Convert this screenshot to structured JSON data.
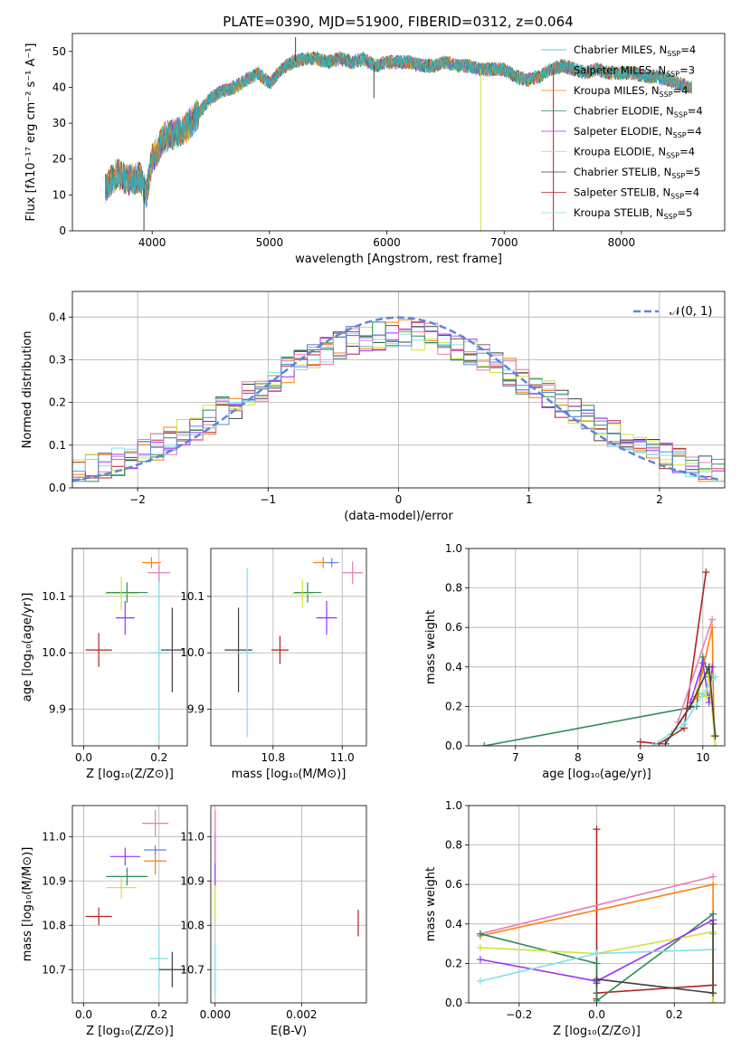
{
  "figure": {
    "title": "PLATE=0390, MJD=51900, FIBERID=0312, z=0.064"
  },
  "colors": {
    "Chabrier MILES": "#17becf",
    "Salpeter MILES": "#7f7f7f",
    "Kroupa MILES": "#ff7f0e",
    "Chabrier ELODIE": "#2e8b57",
    "Salpeter ELODIE": "#9b30ff",
    "Kroupa ELODIE": "#cde33a",
    "Chabrier STELIB": "#404040",
    "Salpeter STELIB": "#b22222",
    "Kroupa STELIB": "#7fdfea",
    "Normal": "#5b87d6",
    "Pink": "#e67eb5",
    "Blue": "#5b87d6"
  },
  "chart_data": [
    {
      "id": "spectrum",
      "type": "line",
      "xlabel": "wavelength [Angstrom, rest frame]",
      "ylabel": "Flux [fλ10⁻¹⁷ erg cm⁻² s⁻¹ A⁻¹]",
      "xlim": [
        3320,
        8880
      ],
      "ylim": [
        0,
        55
      ],
      "xticks": [
        4000,
        5000,
        6000,
        7000,
        8000
      ],
      "yticks": [
        0,
        10,
        20,
        30,
        40,
        50
      ],
      "grid": false,
      "legend_position": "top-right",
      "legend": [
        {
          "name": "Chabrier MILES",
          "nssp": "4"
        },
        {
          "name": "Salpeter MILES",
          "nssp": "3"
        },
        {
          "name": "Kroupa MILES",
          "nssp": "4"
        },
        {
          "name": "Chabrier ELODIE",
          "nssp": "4"
        },
        {
          "name": "Salpeter ELODIE",
          "nssp": "4"
        },
        {
          "name": "Kroupa ELODIE",
          "nssp": "4"
        },
        {
          "name": "Chabrier STELIB",
          "nssp": "5"
        },
        {
          "name": "Salpeter STELIB",
          "nssp": "4"
        },
        {
          "name": "Kroupa STELIB",
          "nssp": "5"
        }
      ],
      "continuum": {
        "x": [
          3600,
          3700,
          3800,
          3900,
          3950,
          4000,
          4100,
          4200,
          4300,
          4400,
          4500,
          4600,
          4700,
          4800,
          4900,
          5000,
          5100,
          5200,
          5300,
          5400,
          5500,
          5600,
          5700,
          5800,
          5900,
          6000,
          6100,
          6200,
          6300,
          6400,
          6500,
          6600,
          6700,
          6800,
          6900,
          7000,
          7100,
          7200,
          7300,
          7400,
          7500,
          7600,
          7700,
          7800,
          7900,
          8000,
          8100,
          8200,
          8300,
          8400,
          8500,
          8600
        ],
        "y": [
          12,
          16,
          14,
          15,
          10,
          20,
          26,
          27,
          29,
          33,
          37,
          39,
          40,
          42,
          44,
          41,
          45,
          47,
          48,
          48,
          47,
          48,
          47,
          48,
          46,
          47,
          47,
          47,
          46,
          46,
          47,
          46,
          46,
          45,
          45,
          45,
          43,
          42,
          43,
          45,
          46,
          45,
          44,
          45,
          44,
          44,
          44,
          43,
          43,
          42,
          41,
          40
        ]
      },
      "spikes": [
        {
          "x": 3930,
          "y": 0
        },
        {
          "x": 5222,
          "y": 54
        },
        {
          "x": 5890,
          "y": 37
        },
        {
          "x": 6800,
          "y": 0
        },
        {
          "x": 7420,
          "y": 0
        }
      ]
    },
    {
      "id": "residuals",
      "type": "line",
      "xlabel": "(data-model)/error",
      "ylabel": "Normed distribution",
      "xlim": [
        -2.5,
        2.5
      ],
      "ylim": [
        0,
        0.46
      ],
      "xticks": [
        -2,
        -1,
        0,
        1,
        2
      ],
      "yticks": [
        0.0,
        0.1,
        0.2,
        0.3,
        0.4
      ],
      "grid": true,
      "legend_position": "top-right",
      "gaussian_label": "𝒩(0, 1)",
      "gaussian": {
        "mean": 0,
        "sigma": 1
      },
      "hist_bin_width": 0.1
    },
    {
      "id": "age_vs_Z",
      "type": "scatter",
      "xlabel": "Z [log₁₀(Z/Z⊙)]",
      "ylabel": "age  [log₁₀(age/yr)]",
      "xlim": [
        -0.03,
        0.275
      ],
      "ylim": [
        9.835,
        10.185
      ],
      "xticks": [
        0.0,
        0.2
      ],
      "yticks": [
        9.9,
        10.0,
        10.1
      ],
      "grid": true,
      "points": [
        {
          "series": "Salpeter STELIB",
          "x": 0.04,
          "y": 10.005,
          "xerr": 0.035,
          "yerr": 0.03
        },
        {
          "series": "Chabrier ELODIE",
          "x": 0.115,
          "y": 10.107,
          "xerr": 0.055,
          "yerr": 0.018
        },
        {
          "series": "Kroupa ELODIE",
          "x": 0.1,
          "y": 10.105,
          "xerr": 0.045,
          "yerr": 0.03
        },
        {
          "series": "Salpeter ELODIE",
          "x": 0.11,
          "y": 10.062,
          "xerr": 0.025,
          "yerr": 0.03
        },
        {
          "series": "Kroupa MILES",
          "x": 0.18,
          "y": 10.16,
          "xerr": 0.025,
          "yerr": 0.01
        },
        {
          "series": "Chabrier STELIB",
          "x": 0.235,
          "y": 10.005,
          "xerr": 0.03,
          "yerr": 0.075
        },
        {
          "series": "Kroupa STELIB",
          "x": 0.2,
          "y": 10.0,
          "xerr": 0.025,
          "yerr": 0.155
        },
        {
          "series": "Pink",
          "x": 0.2,
          "y": 10.142,
          "xerr": 0.03,
          "yerr": 0.015
        }
      ]
    },
    {
      "id": "age_vs_mass",
      "type": "scatter",
      "xlabel": "mass [log₁₀(M/M⊙)]",
      "ylabel": "",
      "xlim": [
        10.62,
        11.07
      ],
      "ylim": [
        9.835,
        10.185
      ],
      "xticks": [
        10.8,
        11.0
      ],
      "yticks": [
        9.9,
        10.0,
        10.1
      ],
      "grid": true,
      "points": [
        {
          "series": "Chabrier STELIB",
          "x": 10.7,
          "y": 10.005,
          "xerr": 0.04,
          "yerr": 0.075
        },
        {
          "series": "Kroupa STELIB",
          "x": 10.725,
          "y": 10.0,
          "xerr": 0.03,
          "yerr": 0.15
        },
        {
          "series": "Salpeter STELIB",
          "x": 10.82,
          "y": 10.005,
          "xerr": 0.025,
          "yerr": 0.025
        },
        {
          "series": "Chabrier ELODIE",
          "x": 10.9,
          "y": 10.107,
          "xerr": 0.04,
          "yerr": 0.018
        },
        {
          "series": "Kroupa ELODIE",
          "x": 10.885,
          "y": 10.105,
          "xerr": 0.03,
          "yerr": 0.025
        },
        {
          "series": "Salpeter ELODIE",
          "x": 10.955,
          "y": 10.062,
          "xerr": 0.03,
          "yerr": 0.03
        },
        {
          "series": "Kroupa MILES",
          "x": 10.945,
          "y": 10.16,
          "xerr": 0.03,
          "yerr": 0.01
        },
        {
          "series": "Blue",
          "x": 10.97,
          "y": 10.16,
          "xerr": 0.02,
          "yerr": 0.008
        },
        {
          "series": "Pink",
          "x": 11.03,
          "y": 10.142,
          "xerr": 0.03,
          "yerr": 0.02
        }
      ]
    },
    {
      "id": "mass_weight_vs_age",
      "type": "line",
      "xlabel": "age  [log₁₀(age/yr)]",
      "ylabel": "mass weight",
      "xlim": [
        6.25,
        10.35
      ],
      "ylim": [
        0.0,
        1.0
      ],
      "xticks": [
        7,
        8,
        9,
        10
      ],
      "yticks": [
        0.0,
        0.2,
        0.4,
        0.6,
        0.8,
        1.0
      ],
      "grid": true,
      "series": [
        {
          "name": "Chabrier ELODIE",
          "x": [
            6.5,
            9.9,
            10.0,
            10.1
          ],
          "y": [
            0.0,
            0.2,
            0.45,
            0.35
          ]
        },
        {
          "name": "Salpeter STELIB",
          "x": [
            9.0,
            9.3,
            9.7,
            10.05
          ],
          "y": [
            0.02,
            0.01,
            0.09,
            0.88
          ]
        },
        {
          "name": "Pink",
          "x": [
            9.6,
            10.15
          ],
          "y": [
            0.12,
            0.64
          ]
        },
        {
          "name": "Kroupa MILES",
          "x": [
            9.5,
            9.9,
            10.15,
            10.18
          ],
          "y": [
            0.06,
            0.25,
            0.6,
            0.05
          ]
        },
        {
          "name": "Salpeter ELODIE",
          "x": [
            9.8,
            10.0,
            10.1,
            10.15
          ],
          "y": [
            0.22,
            0.42,
            0.22,
            0.4
          ]
        },
        {
          "name": "Kroupa ELODIE",
          "x": [
            9.9,
            10.05,
            10.1,
            10.2
          ],
          "y": [
            0.28,
            0.25,
            0.36,
            0.0
          ]
        },
        {
          "name": "Kroupa STELIB",
          "x": [
            9.2,
            9.7,
            10.0,
            10.2
          ],
          "y": [
            0.0,
            0.11,
            0.26,
            0.35
          ]
        },
        {
          "name": "Chabrier STELIB",
          "x": [
            9.4,
            9.8,
            10.1,
            10.2
          ],
          "y": [
            0.01,
            0.2,
            0.4,
            0.05
          ]
        }
      ]
    },
    {
      "id": "mass_vs_Z",
      "type": "scatter",
      "xlabel": "Z [log₁₀(Z/Z⊙)]",
      "ylabel": "mass [log₁₀(M/M⊙)]",
      "xlim": [
        -0.03,
        0.275
      ],
      "ylim": [
        10.625,
        11.07
      ],
      "xticks": [
        0.0,
        0.2
      ],
      "yticks": [
        10.7,
        10.8,
        10.9,
        11.0
      ],
      "grid": true,
      "points": [
        {
          "series": "Salpeter STELIB",
          "x": 0.04,
          "y": 10.82,
          "xerr": 0.035,
          "yerr": 0.02
        },
        {
          "series": "Kroupa ELODIE",
          "x": 0.1,
          "y": 10.885,
          "xerr": 0.04,
          "yerr": 0.025
        },
        {
          "series": "Chabrier ELODIE",
          "x": 0.115,
          "y": 10.91,
          "xerr": 0.055,
          "yerr": 0.02
        },
        {
          "series": "Salpeter ELODIE",
          "x": 0.11,
          "y": 10.955,
          "xerr": 0.04,
          "yerr": 0.02
        },
        {
          "series": "Kroupa MILES",
          "x": 0.19,
          "y": 10.945,
          "xerr": 0.03,
          "yerr": 0.03
        },
        {
          "series": "Blue",
          "x": 0.19,
          "y": 10.97,
          "xerr": 0.03,
          "yerr": 0.01
        },
        {
          "series": "Pink",
          "x": 0.19,
          "y": 11.03,
          "xerr": 0.035,
          "yerr": 0.03
        },
        {
          "series": "Kroupa STELIB",
          "x": 0.2,
          "y": 10.725,
          "xerr": 0.025,
          "yerr": 0.07
        },
        {
          "series": "Chabrier STELIB",
          "x": 0.235,
          "y": 10.7,
          "xerr": 0.035,
          "yerr": 0.04
        }
      ]
    },
    {
      "id": "mass_vs_EBV",
      "type": "scatter",
      "xlabel": "E(B-V)",
      "ylabel": "",
      "xlim": [
        -0.0001,
        0.0035
      ],
      "ylim": [
        10.625,
        11.07
      ],
      "xticks": [
        0.0,
        0.002
      ],
      "xticklabels": [
        "0.000",
        "0.002"
      ],
      "yticks": [
        10.7,
        10.8,
        10.9,
        11.0
      ],
      "grid": true,
      "points": [
        {
          "series": "Kroupa STELIB",
          "x": 0.0,
          "y": 10.7,
          "xerr": 0.0,
          "yerr": 0.06
        },
        {
          "series": "Kroupa ELODIE",
          "x": 0.0,
          "y": 10.88,
          "xerr": 0.0,
          "yerr": 0.07
        },
        {
          "series": "Salpeter ELODIE",
          "x": 0.0,
          "y": 10.95,
          "xerr": 0.0,
          "yerr": 0.06
        },
        {
          "series": "Pink",
          "x": 0.0,
          "y": 11.0,
          "xerr": 0.0,
          "yerr": 0.06
        },
        {
          "series": "Salpeter STELIB",
          "x": 0.00331,
          "y": 10.805,
          "xerr": 0.0,
          "yerr": 0.03
        }
      ]
    },
    {
      "id": "mass_weight_vs_Z",
      "type": "line",
      "xlabel": "Z [log₁₀(Z/Z⊙)]",
      "ylabel": "mass weight",
      "xlim": [
        -0.33,
        0.33
      ],
      "ylim": [
        0.0,
        1.0
      ],
      "xticks": [
        -0.2,
        0.0,
        0.2
      ],
      "xticklabels": [
        "−0.2",
        "0.0",
        "0.2"
      ],
      "yticks": [
        0.0,
        0.2,
        0.4,
        0.6,
        0.8,
        1.0
      ],
      "grid": true,
      "series": [
        {
          "name": "Salpeter STELIB",
          "x": [
            0.0,
            0.0,
            0.0,
            0.3,
            0.3,
            0.3
          ],
          "y": [
            0.88,
            0.02,
            0.05,
            0.09,
            0.0,
            0.42
          ]
        },
        {
          "name": "Pink",
          "x": [
            -0.3,
            0.3
          ],
          "y": [
            0.35,
            0.64
          ]
        },
        {
          "name": "Kroupa MILES",
          "x": [
            -0.3,
            0.3,
            0.3
          ],
          "y": [
            0.34,
            0.6,
            0.05
          ]
        },
        {
          "name": "Chabrier ELODIE",
          "x": [
            -0.3,
            0.0,
            0.0,
            0.3,
            0.3
          ],
          "y": [
            0.35,
            0.2,
            0.01,
            0.45,
            0.35
          ]
        },
        {
          "name": "Kroupa ELODIE",
          "x": [
            -0.3,
            0.0,
            0.3,
            0.3
          ],
          "y": [
            0.28,
            0.25,
            0.36,
            0.0
          ]
        },
        {
          "name": "Salpeter ELODIE",
          "x": [
            -0.3,
            0.0,
            0.3
          ],
          "y": [
            0.22,
            0.11,
            0.42
          ]
        },
        {
          "name": "Kroupa STELIB",
          "x": [
            -0.3,
            0.0,
            0.3,
            0.3
          ],
          "y": [
            0.11,
            0.25,
            0.27,
            0.35
          ]
        },
        {
          "name": "Chabrier STELIB",
          "x": [
            0.0,
            0.0,
            0.3,
            0.3
          ],
          "y": [
            0.1,
            0.12,
            0.05,
            0.4
          ]
        }
      ]
    }
  ]
}
